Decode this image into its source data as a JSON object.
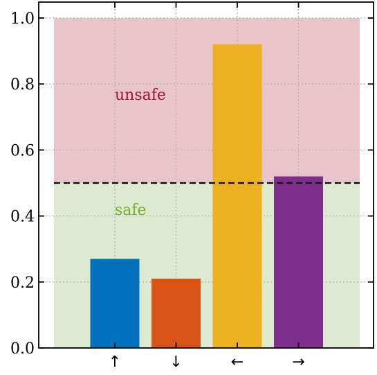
{
  "chart_data": {
    "type": "bar",
    "categories": [
      "↑",
      "↓",
      "←",
      "→"
    ],
    "values": [
      0.27,
      0.21,
      0.92,
      0.52
    ],
    "bar_colors": [
      "#0072bd",
      "#d95319",
      "#edb120",
      "#7e2f8e"
    ],
    "ylim": [
      0,
      1.04
    ],
    "yticks": [
      "0.0",
      "0.2",
      "0.4",
      "0.6",
      "0.8",
      "1.0"
    ],
    "ytick_values": [
      0,
      0.2,
      0.4,
      0.6,
      0.8,
      1.0
    ],
    "grid": true,
    "threshold": 0.5,
    "regions": [
      {
        "label": "unsafe",
        "from": 0.5,
        "to": 1.0,
        "fill": "#e8c5cb",
        "text_color": "#a2142f"
      },
      {
        "label": "safe",
        "from": 0.0,
        "to": 0.5,
        "fill": "#deeacf",
        "text_color": "#77ac30"
      }
    ],
    "title": "",
    "xlabel": "",
    "ylabel": ""
  }
}
